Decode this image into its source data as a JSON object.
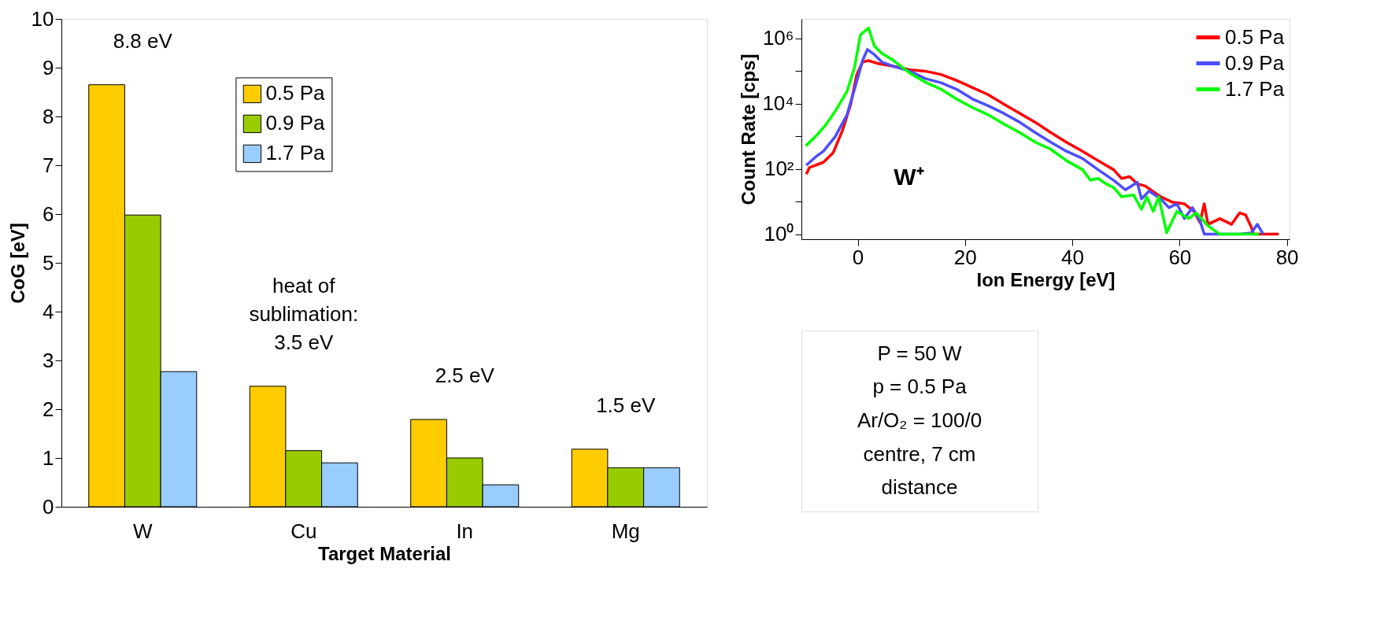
{
  "chart_data": [
    {
      "type": "bar",
      "xlabel": "Target Material",
      "ylabel": "CoG [eV]",
      "categories": [
        "W",
        "Cu",
        "In",
        "Mg"
      ],
      "series": [
        {
          "name": "0.5 Pa",
          "color": "#ffcc00",
          "values": [
            8.65,
            2.47,
            1.79,
            1.18
          ]
        },
        {
          "name": "0.9 Pa",
          "color": "#99cc00",
          "values": [
            5.98,
            1.15,
            1.0,
            0.8
          ]
        },
        {
          "name": "1.7 Pa",
          "color": "#99ccff",
          "values": [
            2.77,
            0.9,
            0.45,
            0.8
          ]
        }
      ],
      "ylim": [
        0,
        10
      ],
      "yticks": [
        0,
        1,
        2,
        3,
        4,
        5,
        6,
        7,
        8,
        9,
        10
      ],
      "legend": "top left",
      "annotations": [
        "8.8 eV",
        "heat of\nsublimation:\n3.5 eV",
        "2.5 eV",
        "1.5 eV"
      ]
    },
    {
      "type": "line",
      "xlabel": "Ion Energy [eV]",
      "ylabel": "Count Rate [cps]",
      "log": "y",
      "legend": "top right",
      "series": [
        {
          "name": "0.5 Pa",
          "color": "#ff0000",
          "x": [
            -9.6,
            -9,
            -6.4,
            -4.6,
            -2.8,
            -1.3,
            -0.2,
            0.9,
            2,
            3.8,
            6.7,
            9.7,
            12.6,
            15.5,
            18.4,
            21.4,
            24.3,
            27.2,
            30.2,
            33.1,
            36,
            38.9,
            41.9,
            44.8,
            47.7,
            49.2,
            50.7,
            52.1,
            53.6,
            56.5,
            58.7,
            60.9,
            62.7,
            63.8,
            64.6,
            65.3,
            67.5,
            69.7,
            71.2,
            72.3,
            73.4,
            73.8,
            76.3,
            78.5
          ],
          "values": [
            69,
            110,
            160,
            310,
            1600,
            9800,
            76000,
            190000,
            210000,
            170000,
            140000,
            110000,
            100000,
            79000,
            52000,
            31000,
            19000,
            9800,
            5100,
            2700,
            1300,
            660,
            350,
            180,
            95,
            51,
            58,
            35,
            30,
            14,
            9.5,
            8.5,
            5,
            2.3,
            8.5,
            2,
            3,
            2,
            4.5,
            3.9,
            1.6,
            1,
            1,
            1
          ]
        },
        {
          "name": "0.9 Pa",
          "color": "#4d4dff",
          "x": [
            -9.6,
            -7.9,
            -6.4,
            -4.2,
            -2.0,
            -0.6,
            0.9,
            1.8,
            3.1,
            4.5,
            6.7,
            9.7,
            12.6,
            15.5,
            18.4,
            21.4,
            24.3,
            27.2,
            30.2,
            33.1,
            36,
            38.9,
            41.9,
            44.8,
            47.7,
            49.9,
            52.1,
            52.9,
            54.3,
            56.5,
            58.0,
            59.5,
            60.9,
            62.4,
            63.8,
            64.6,
            65.3,
            71.2,
            73.4,
            74.5,
            75.6
          ],
          "values": [
            130,
            230,
            350,
            980,
            4600,
            28000,
            210000,
            460000,
            320000,
            190000,
            140000,
            100000,
            59000,
            44000,
            28000,
            14000,
            8700,
            5100,
            2700,
            1300,
            660,
            350,
            210,
            95,
            45,
            23,
            39,
            12,
            21,
            12,
            6.5,
            8.5,
            3,
            6.5,
            2.6,
            1,
            1,
            1,
            1.1,
            2,
            1
          ]
        },
        {
          "name": "1.7 Pa",
          "color": "#00ff00",
          "x": [
            -9.7,
            -7.9,
            -6.1,
            -4.2,
            -2.0,
            -0.6,
            0.5,
            2.0,
            3.1,
            4.5,
            6.7,
            9.7,
            12.6,
            15.5,
            18.4,
            21.4,
            24.3,
            27.2,
            30.2,
            33.1,
            36,
            38.9,
            41.9,
            43.4,
            44.8,
            46.3,
            47.7,
            49.2,
            51.4,
            52.9,
            53.9,
            55.1,
            56.1,
            57.6,
            59.5,
            61.7,
            63.1,
            65.3,
            66.8,
            67.5,
            71.9,
            74.8
          ],
          "values": [
            510,
            980,
            2100,
            5900,
            24000,
            130000,
            1300000,
            2100000,
            590000,
            350000,
            210000,
            87000,
            46000,
            28000,
            14000,
            7600,
            4600,
            2400,
            1300,
            660,
            400,
            180,
            95,
            45,
            51,
            35,
            27,
            14,
            16,
            5.8,
            14,
            5,
            14,
            1.1,
            5,
            3,
            4.5,
            1.8,
            1.2,
            1,
            1,
            1
          ]
        }
      ],
      "xlim": [
        -10.5,
        80.5
      ],
      "xticks": [
        0,
        20,
        40,
        60,
        80
      ],
      "ylim": [
        0.7,
        4000000
      ],
      "yticks": [
        {
          "value": 1,
          "label": "10⁰"
        },
        {
          "value": 10,
          "label": null
        },
        {
          "value": 100,
          "label": "10²"
        },
        {
          "value": 1000,
          "label": null
        },
        {
          "value": 10000,
          "label": "10⁴"
        },
        {
          "value": 100000,
          "label": null
        },
        {
          "value": 1000000,
          "label": "10⁶"
        }
      ],
      "annotations": [
        "W⁺"
      ]
    },
    {
      "type": "other",
      "annotations": [
        "P = 50 W",
        "p = 0.5 Pa",
        "Ar/O₂ = 100/0",
        "centre, 7 cm",
        "distance"
      ]
    }
  ]
}
